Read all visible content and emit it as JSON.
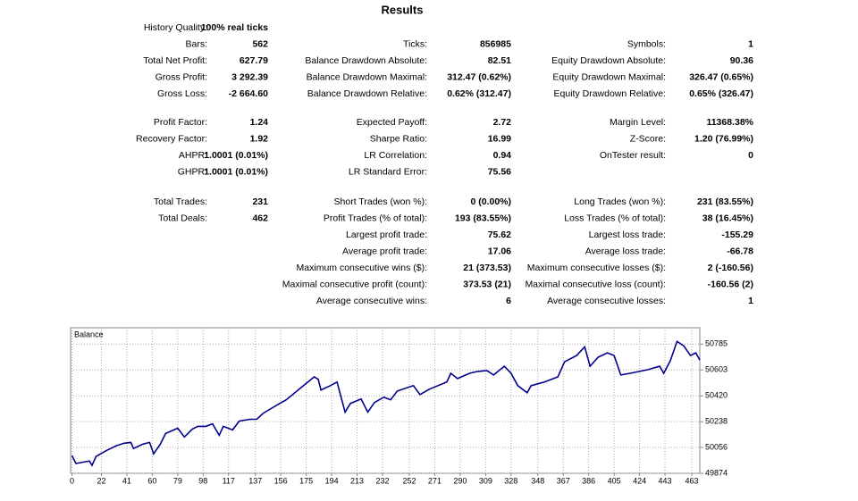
{
  "report": {
    "title": "Results",
    "groups": [
      [
        [
          "History Quality:",
          "100% real ticks",
          null,
          null,
          null,
          null
        ],
        [
          "Bars:",
          "562",
          "Ticks:",
          "856985",
          "Symbols:",
          "1"
        ],
        [
          "Total Net Profit:",
          "627.79",
          "Balance Drawdown Absolute:",
          "82.51",
          "Equity Drawdown Absolute:",
          "90.36"
        ],
        [
          "Gross Profit:",
          "3 292.39",
          "Balance Drawdown Maximal:",
          "312.47 (0.62%)",
          "Equity Drawdown Maximal:",
          "326.47 (0.65%)"
        ],
        [
          "Gross Loss:",
          "-2 664.60",
          "Balance Drawdown Relative:",
          "0.62% (312.47)",
          "Equity Drawdown Relative:",
          "0.65% (326.47)"
        ]
      ],
      [
        [
          "Profit Factor:",
          "1.24",
          "Expected Payoff:",
          "2.72",
          "Margin Level:",
          "11368.38%"
        ],
        [
          "Recovery Factor:",
          "1.92",
          "Sharpe Ratio:",
          "16.99",
          "Z-Score:",
          "1.20 (76.99%)"
        ],
        [
          "AHPR:",
          "1.0001 (0.01%)",
          "LR Correlation:",
          "0.94",
          "OnTester result:",
          "0"
        ],
        [
          "GHPR:",
          "1.0001 (0.01%)",
          "LR Standard Error:",
          "75.56",
          null,
          null
        ]
      ],
      [
        [
          "Total Trades:",
          "231",
          "Short Trades (won %):",
          "0 (0.00%)",
          "Long Trades (won %):",
          "231 (83.55%)"
        ],
        [
          "Total Deals:",
          "462",
          "Profit Trades (% of total):",
          "193 (83.55%)",
          "Loss Trades (% of total):",
          "38 (16.45%)"
        ],
        [
          null,
          null,
          "Largest profit trade:",
          "75.62",
          "Largest loss trade:",
          "-155.29"
        ],
        [
          null,
          null,
          "Average profit trade:",
          "17.06",
          "Average loss trade:",
          "-66.78"
        ],
        [
          null,
          null,
          "Maximum consecutive wins ($):",
          "21 (373.53)",
          "Maximum consecutive losses ($):",
          "2 (-160.56)"
        ],
        [
          null,
          null,
          "Maximal consecutive profit (count):",
          "373.53 (21)",
          "Maximal consecutive loss (count):",
          "-160.56 (2)"
        ],
        [
          null,
          null,
          "Average consecutive wins:",
          "6",
          "Average consecutive losses:",
          "1"
        ]
      ]
    ]
  },
  "chart_data": {
    "type": "line",
    "x": [
      0,
      3,
      13,
      15,
      18,
      26,
      33,
      39,
      44,
      46,
      53,
      58,
      61,
      66,
      70,
      79,
      84,
      90,
      94,
      100,
      105,
      110,
      113,
      120,
      125,
      133,
      138,
      143,
      153,
      160,
      173,
      181,
      184,
      186,
      193,
      198,
      204,
      208,
      216,
      221,
      226,
      233,
      238,
      243,
      255,
      260,
      267,
      280,
      283,
      288,
      297,
      303,
      310,
      315,
      323,
      328,
      333,
      340,
      343,
      353,
      363,
      368,
      377,
      383,
      387,
      393,
      400,
      405,
      410,
      417,
      430,
      439,
      442,
      447,
      452,
      457,
      462,
      466,
      469
    ],
    "series": [
      {
        "name": "Balance",
        "color": "#00008b",
        "values": [
          49999,
          49943,
          49961,
          49930,
          49993,
          50036,
          50067,
          50086,
          50092,
          50049,
          50080,
          50092,
          50011,
          50080,
          50155,
          50192,
          50130,
          50186,
          50205,
          50205,
          50223,
          50142,
          50205,
          50180,
          50242,
          50255,
          50255,
          50298,
          50354,
          50392,
          50492,
          50554,
          50536,
          50461,
          50492,
          50517,
          50305,
          50367,
          50398,
          50305,
          50373,
          50411,
          50392,
          50454,
          50492,
          50429,
          50467,
          50517,
          50579,
          50542,
          50579,
          50592,
          50598,
          50567,
          50629,
          50579,
          50492,
          50442,
          50492,
          50517,
          50554,
          50660,
          50704,
          50766,
          50629,
          50692,
          50723,
          50704,
          50567,
          50579,
          50604,
          50629,
          50579,
          50667,
          50804,
          50773,
          50704,
          50723,
          50673
        ]
      }
    ],
    "xlim": [
      -1,
      469
    ],
    "xticks": [
      0,
      22,
      41,
      60,
      79,
      98,
      117,
      137,
      156,
      175,
      194,
      213,
      232,
      252,
      271,
      290,
      309,
      328,
      348,
      367,
      386,
      405,
      424,
      443,
      463
    ],
    "ylim": [
      49874,
      50900
    ],
    "yticks": [
      49874,
      50056,
      50238,
      50420,
      50603,
      50785
    ],
    "grid": true
  }
}
